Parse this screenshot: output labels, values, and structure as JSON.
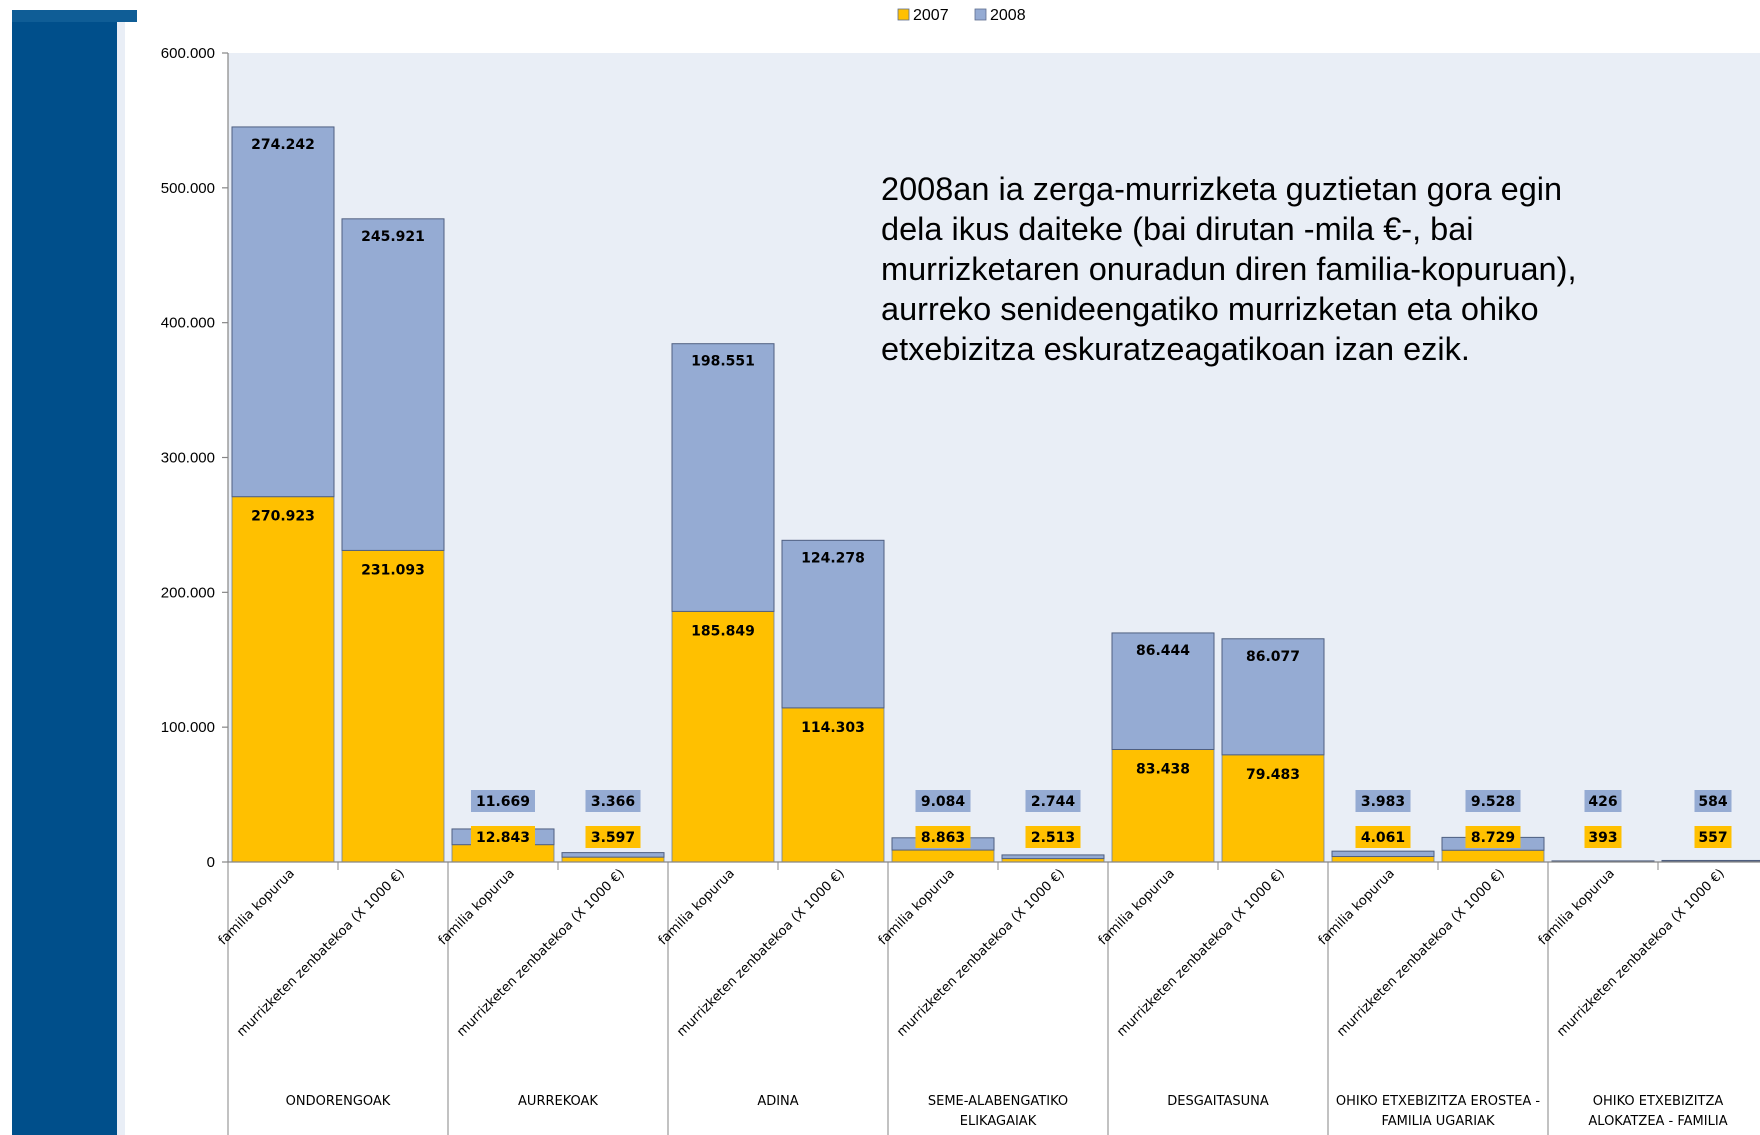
{
  "chart_data": {
    "type": "bar",
    "stacked": true,
    "legend": {
      "position": "top",
      "entries": [
        "2007",
        "2008"
      ]
    },
    "colors": {
      "2007": "#ffc000",
      "2008": "#95abd3",
      "plot_bg": "#e9eef6",
      "label_bg_2008": "#95abd3",
      "label_bg_2007": "#ffc000"
    },
    "ylim": [
      0,
      600000
    ],
    "yticks": [
      "0",
      "100.000",
      "200.000",
      "300.000",
      "400.000",
      "500.000",
      "600.000"
    ],
    "ytick_values": [
      0,
      100000,
      200000,
      300000,
      400000,
      500000,
      600000
    ],
    "grid": false,
    "groups": [
      {
        "name": "ONDORENGOAK",
        "name_lines": [
          "ONDORENGOAK"
        ]
      },
      {
        "name": "AURREKOAK",
        "name_lines": [
          "AURREKOAK"
        ]
      },
      {
        "name": "ADINA",
        "name_lines": [
          "ADINA"
        ]
      },
      {
        "name": "SEME-ALABENGATIKO ELIKAGAIAK",
        "name_lines": [
          "SEME-ALABENGATIKO",
          "ELIKAGAIAK"
        ]
      },
      {
        "name": "DESGAITASUNA",
        "name_lines": [
          "DESGAITASUNA"
        ]
      },
      {
        "name": "OHIKO ETXEBIZITZA EROSTEA - FAMILIA UGARIAK",
        "name_lines": [
          "OHIKO ETXEBIZITZA  EROSTEA -",
          "FAMILIA UGARIAK"
        ]
      },
      {
        "name": "OHIKO ETXEBIZITZA ALOKATZEA - FAMILIA",
        "name_lines": [
          "OHIKO ETXEBIZITZA",
          "ALOKATZEA - FAMILIA"
        ]
      }
    ],
    "subcategories": [
      "familia kopurua",
      "murrizketen zenbatekoa (X 1000 €)"
    ],
    "series": [
      {
        "name": "2007",
        "values": [
          270923,
          231093,
          12843,
          3597,
          185849,
          114303,
          8863,
          2513,
          83438,
          79483,
          4061,
          8729,
          393,
          557
        ],
        "labels": [
          "270.923",
          "231.093",
          "12.843",
          "3.597",
          "185.849",
          "114.303",
          "8.863",
          "2.513",
          "83.438",
          "79.483",
          "4.061",
          "8.729",
          "393",
          "557"
        ]
      },
      {
        "name": "2008",
        "values": [
          274242,
          245921,
          11669,
          3366,
          198551,
          124278,
          9084,
          2744,
          86444,
          86077,
          3983,
          9528,
          426,
          584
        ],
        "labels": [
          "274.242",
          "245.921",
          "11.669",
          "3.366",
          "198.551",
          "124.278",
          "9.084",
          "2.744",
          "86.444",
          "86.077",
          "3.983",
          "9.528",
          "426",
          "584"
        ]
      }
    ],
    "annotation": [
      "2008an ia zerga-murrizketa guztietan gora egin",
      "dela ikus daiteke (bai dirutan -mila €-, bai",
      "murrizketaren onuradun diren familia-kopuruan),",
      "aurreko senideengatiko murrizketan eta ohiko",
      "etxebizitza eskuratzeagatikoan izan ezik."
    ]
  }
}
